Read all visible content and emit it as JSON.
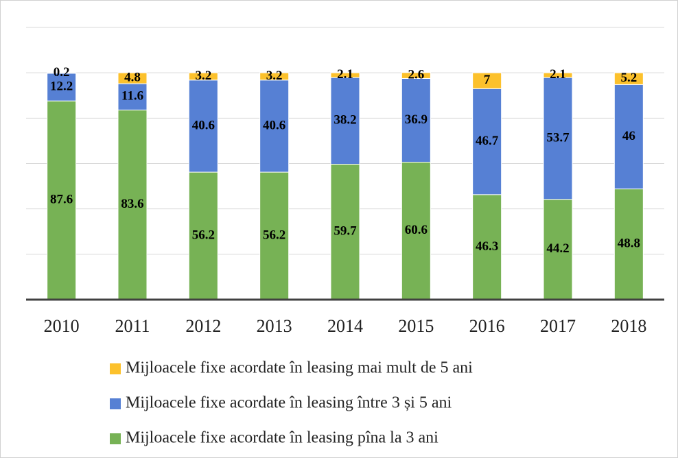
{
  "chart_data": {
    "type": "stacked_bar",
    "categories": [
      "2010",
      "2011",
      "2012",
      "2013",
      "2014",
      "2015",
      "2016",
      "2017",
      "2018"
    ],
    "series": [
      {
        "name": "Mijloacele fixe acordate în leasing pîna la 3 ani",
        "color": "#77b255",
        "values": [
          87.6,
          83.6,
          56.2,
          56.2,
          59.7,
          60.6,
          46.3,
          44.2,
          48.8
        ]
      },
      {
        "name": "Mijloacele fixe acordate în leasing între 3 și 5 ani",
        "color": "#5680d4",
        "values": [
          12.2,
          11.6,
          40.6,
          40.6,
          38.2,
          36.9,
          46.7,
          53.7,
          46
        ]
      },
      {
        "name": "Mijloacele fixe acordate în leasing mai mult de 5 ani",
        "color": "#fcc12c",
        "values": [
          0.2,
          4.8,
          3.2,
          3.2,
          2.1,
          2.6,
          7,
          2.1,
          5.2
        ]
      }
    ],
    "ylim": [
      0,
      120
    ],
    "yticks": [
      0,
      20,
      40,
      60,
      80,
      100,
      120
    ],
    "grid": true,
    "legend": "bottom"
  }
}
